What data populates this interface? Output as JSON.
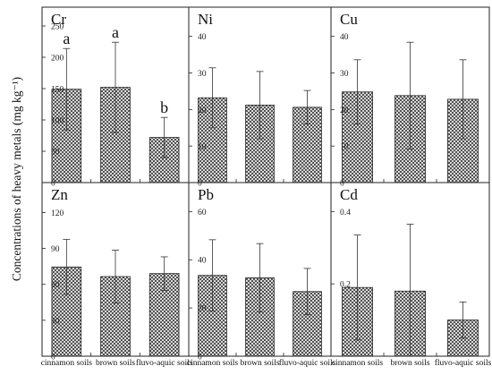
{
  "figure": {
    "ylabel": "Concentrations of heavy metals (mg kg⁻¹)"
  },
  "chart_data": [
    {
      "type": "bar",
      "title": "Cr",
      "categories": [
        "cinnamon soils",
        "brown soils",
        "fluvo-aquic soils"
      ],
      "values": [
        149,
        152,
        72
      ],
      "errors": [
        65,
        72,
        32
      ],
      "significance_letters": [
        "a",
        "a",
        "b"
      ],
      "ylim": [
        0,
        280
      ],
      "yticks": [
        0,
        50,
        100,
        150,
        200,
        250
      ]
    },
    {
      "type": "bar",
      "title": "Ni",
      "categories": [
        "cinnamon soils",
        "brown soils",
        "fluvo-aquic soils"
      ],
      "values": [
        23.2,
        21.2,
        20.6
      ],
      "errors": [
        8.2,
        9.2,
        4.6
      ],
      "ylim": [
        0,
        48
      ],
      "yticks": [
        0,
        10,
        20,
        30,
        40
      ]
    },
    {
      "type": "bar",
      "title": "Cu",
      "categories": [
        "cinnamon soils",
        "brown soils",
        "fluvo-aquic soils"
      ],
      "values": [
        24.8,
        23.8,
        22.8
      ],
      "errors": [
        8.8,
        14.6,
        10.8
      ],
      "ylim": [
        0,
        48
      ],
      "yticks": [
        0,
        10,
        20,
        30,
        40
      ]
    },
    {
      "type": "bar",
      "title": "Zn",
      "categories": [
        "cinnamon soils",
        "brown soils",
        "fluvo-aquic soils"
      ],
      "values": [
        74.5,
        66.5,
        69
      ],
      "errors": [
        23,
        22,
        14
      ],
      "ylim": [
        0,
        145
      ],
      "yticks": [
        0,
        30,
        60,
        90,
        120
      ]
    },
    {
      "type": "bar",
      "title": "Pb",
      "categories": [
        "cinnamon soils",
        "brown soils",
        "fluvo-aquic soils"
      ],
      "values": [
        33.5,
        32.5,
        26.8
      ],
      "errors": [
        14.8,
        14.2,
        9.6
      ],
      "ylim": [
        0,
        72
      ],
      "yticks": [
        0,
        20,
        40,
        60
      ]
    },
    {
      "type": "bar",
      "title": "Cd",
      "categories": [
        "cinnamon soils",
        "brown soils",
        "fluvo-aquic soils"
      ],
      "values": [
        0.19,
        0.18,
        0.1
      ],
      "errors": [
        0.145,
        0.185,
        0.05
      ],
      "ylim": [
        0,
        0.48
      ],
      "yticks": [
        0.2,
        0.4
      ]
    }
  ]
}
